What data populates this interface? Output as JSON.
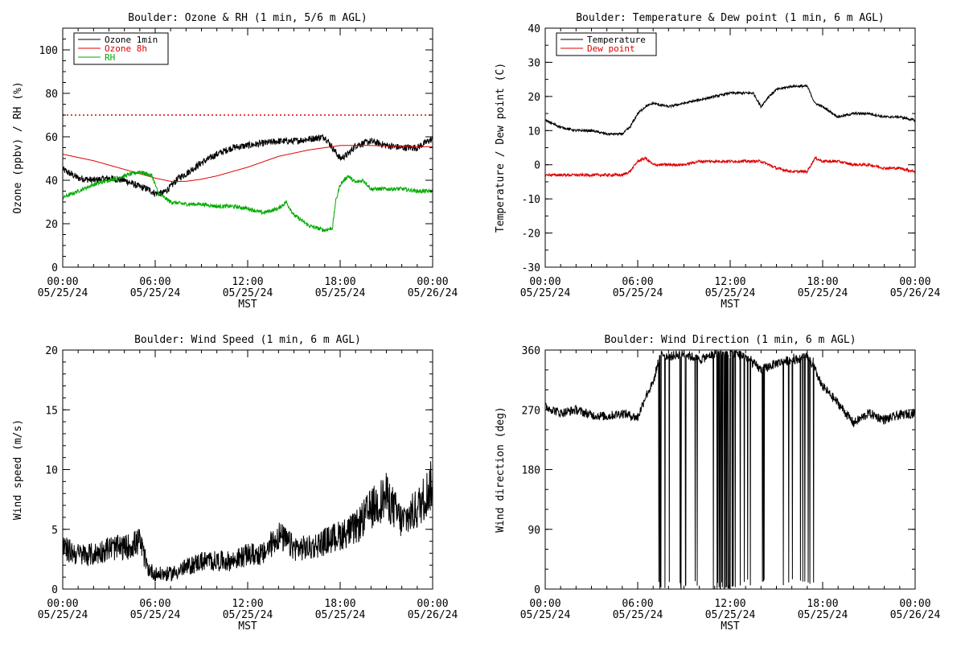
{
  "time_axis": {
    "ticks": [
      {
        "time": "00:00",
        "date": "05/25/24"
      },
      {
        "time": "06:00",
        "date": "05/25/24"
      },
      {
        "time": "12:00",
        "date": "05/25/24"
      },
      {
        "time": "18:00",
        "date": "05/25/24"
      },
      {
        "time": "00:00",
        "date": "05/26/24"
      }
    ],
    "label": "MST"
  },
  "chart_data": [
    {
      "type": "line",
      "title": "Boulder: Ozone & RH (1 min, 5/6 m AGL)",
      "xlabel": "MST",
      "ylabel": "Ozone (ppbv) / RH (%)",
      "xlim": [
        0,
        24
      ],
      "ylim": [
        0,
        110
      ],
      "yticks": [
        0,
        20,
        40,
        60,
        80,
        100
      ],
      "grid": false,
      "legend": "top-left",
      "reference_lines": [
        {
          "y": 70,
          "color": "#dd0000",
          "style": "dotted"
        }
      ],
      "series": [
        {
          "name": "Ozone 1min",
          "color": "#000000",
          "noise": 1.6,
          "x": [
            0,
            0.5,
            1,
            2,
            3,
            4,
            5,
            5.5,
            6,
            6.5,
            7,
            7.5,
            8,
            9,
            10,
            11,
            12,
            13,
            14,
            15,
            16,
            17,
            17.5,
            18,
            18.5,
            19,
            20,
            21,
            22,
            23,
            23.7,
            24
          ],
          "y": [
            45,
            43,
            41,
            40,
            41,
            40,
            37,
            36,
            34,
            34,
            37,
            41,
            43,
            48,
            52,
            55,
            56,
            57,
            58,
            58,
            59,
            60,
            55,
            50,
            52,
            56,
            58,
            56,
            55,
            55,
            58,
            59
          ]
        },
        {
          "name": "Ozone 8h",
          "color": "#dd0000",
          "noise": 0,
          "x": [
            0,
            2,
            4,
            6,
            7,
            8,
            9,
            10,
            12,
            14,
            16,
            18,
            20,
            22,
            24
          ],
          "y": [
            52,
            49,
            45,
            41,
            39.5,
            39.5,
            40.5,
            42,
            46,
            51,
            54,
            56,
            56,
            55.5,
            55.5
          ]
        },
        {
          "name": "RH",
          "color": "#00aa00",
          "noise": 0.9,
          "x": [
            0,
            1,
            2,
            3,
            4,
            5,
            5.8,
            6.2,
            7,
            8,
            9,
            10,
            11,
            12,
            13,
            14,
            14.5,
            15,
            16,
            17,
            17.5,
            17.7,
            18,
            18.5,
            19,
            19.5,
            20,
            21,
            22,
            23,
            24
          ],
          "y": [
            32,
            35,
            38,
            40,
            42,
            44,
            42,
            34,
            30,
            29,
            29,
            28,
            28,
            27,
            25,
            27,
            30,
            24,
            19,
            17,
            18,
            30,
            38,
            42,
            39,
            40,
            36,
            36,
            36,
            35,
            35
          ]
        }
      ]
    },
    {
      "type": "line",
      "title": "Boulder: Temperature & Dew point (1 min, 6 m AGL)",
      "xlabel": "MST",
      "ylabel": "Temperature / Dew point (C)",
      "xlim": [
        0,
        24
      ],
      "ylim": [
        -30,
        40
      ],
      "yticks": [
        -30,
        -20,
        -10,
        0,
        10,
        20,
        30,
        40
      ],
      "grid": false,
      "legend": "top-left",
      "series": [
        {
          "name": "Temperature",
          "color": "#000000",
          "noise": 0.35,
          "x": [
            0,
            1,
            2,
            3,
            4,
            5,
            5.5,
            6,
            6.5,
            7,
            8,
            9,
            10,
            11,
            12,
            13,
            13.5,
            14,
            14.5,
            15,
            16,
            17,
            17.5,
            18,
            19,
            20,
            21,
            22,
            23,
            24
          ],
          "y": [
            13,
            11,
            10,
            10,
            9,
            9,
            11,
            15,
            17,
            18,
            17,
            18,
            19,
            20,
            21,
            21,
            21,
            17,
            20,
            22,
            23,
            23,
            18,
            17,
            14,
            15,
            15,
            14,
            14,
            13
          ]
        },
        {
          "name": "Dew point",
          "color": "#dd0000",
          "noise": 0.4,
          "x": [
            0,
            1,
            2,
            3,
            4,
            5,
            5.5,
            6,
            6.5,
            7,
            8,
            9,
            10,
            11,
            12,
            13,
            14,
            15,
            16,
            17,
            17.5,
            18,
            19,
            20,
            21,
            22,
            23,
            24
          ],
          "y": [
            -3,
            -3,
            -3,
            -3,
            -3,
            -3,
            -2,
            1,
            2,
            0,
            0,
            0,
            1,
            1,
            1,
            1,
            1,
            -1,
            -2,
            -2,
            2,
            1,
            1,
            0,
            0,
            -1,
            -1,
            -2
          ]
        }
      ]
    },
    {
      "type": "line",
      "title": "Boulder: Wind Speed (1 min, 6 m AGL)",
      "xlabel": "MST",
      "ylabel": "Wind speed (m/s)",
      "xlim": [
        0,
        24
      ],
      "ylim": [
        0,
        20
      ],
      "yticks": [
        0,
        5,
        10,
        15,
        20
      ],
      "grid": false,
      "series": [
        {
          "name": "",
          "color": "#000000",
          "noise": 1.0,
          "clip_min": 0,
          "x": [
            0,
            1,
            2,
            3,
            4,
            5,
            5.5,
            6,
            7,
            8,
            9,
            10,
            11,
            12,
            13,
            14,
            15,
            16,
            17,
            18,
            19,
            20,
            21,
            22,
            23,
            24
          ],
          "y": [
            3,
            2.5,
            2.5,
            3,
            3,
            3.5,
            1.5,
            1,
            1,
            1.5,
            2,
            2,
            2,
            2.5,
            2.5,
            4,
            3,
            3,
            3.5,
            4,
            4.5,
            6,
            7,
            5,
            6,
            8
          ]
        }
      ]
    },
    {
      "type": "line",
      "title": "Boulder: Wind Direction (1 min, 6 m AGL)",
      "xlabel": "MST",
      "ylabel": "Wind direction (deg)",
      "xlim": [
        0,
        24
      ],
      "ylim": [
        0,
        360
      ],
      "yticks": [
        0,
        90,
        180,
        270,
        360
      ],
      "grid": false,
      "series": [
        {
          "name": "",
          "color": "#000000",
          "noise": 7,
          "wrap": true,
          "x": [
            0,
            1,
            2,
            3,
            4,
            5,
            6,
            6.5,
            7,
            7.5,
            8,
            9,
            10,
            11,
            12,
            13,
            14,
            15,
            16,
            17,
            17.5,
            18,
            19,
            20,
            21,
            22,
            23,
            24
          ],
          "y": [
            275,
            265,
            270,
            262,
            260,
            265,
            258,
            290,
            310,
            360,
            350,
            355,
            345,
            355,
            360,
            350,
            330,
            340,
            345,
            350,
            330,
            305,
            280,
            250,
            265,
            255,
            262,
            265
          ]
        }
      ]
    }
  ]
}
